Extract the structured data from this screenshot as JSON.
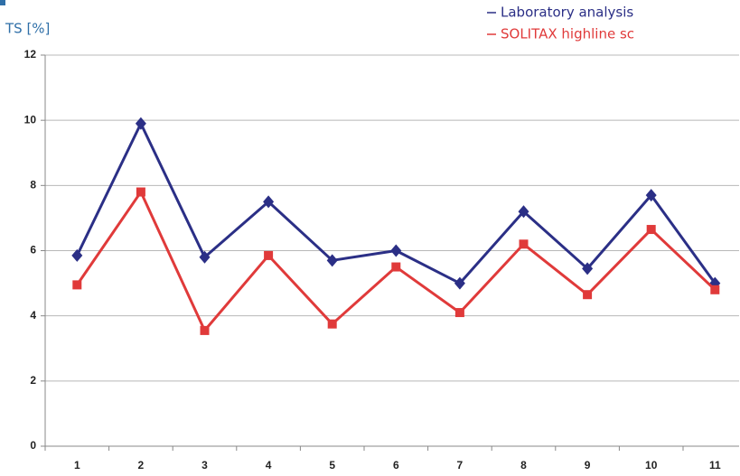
{
  "chart_data": {
    "type": "line",
    "y_label": "TS [%]",
    "categories": [
      "1",
      "2",
      "3",
      "4",
      "5",
      "6",
      "7",
      "8",
      "9",
      "10",
      "11"
    ],
    "series": [
      {
        "name": "Laboratory analysis",
        "color": "#2b2f86",
        "marker": "diamond",
        "values": [
          5.85,
          9.9,
          5.8,
          7.5,
          5.7,
          6.0,
          5.0,
          7.2,
          5.45,
          7.7,
          5.0
        ]
      },
      {
        "name": "SOLITAX highline sc",
        "color": "#e03a3a",
        "marker": "square",
        "values": [
          4.95,
          7.8,
          3.55,
          5.85,
          3.75,
          5.5,
          4.1,
          6.2,
          4.65,
          6.65,
          4.8
        ]
      }
    ],
    "ylim": [
      0,
      12
    ],
    "yticks": [
      0,
      2,
      4,
      6,
      8,
      10,
      12
    ],
    "grid": true
  }
}
